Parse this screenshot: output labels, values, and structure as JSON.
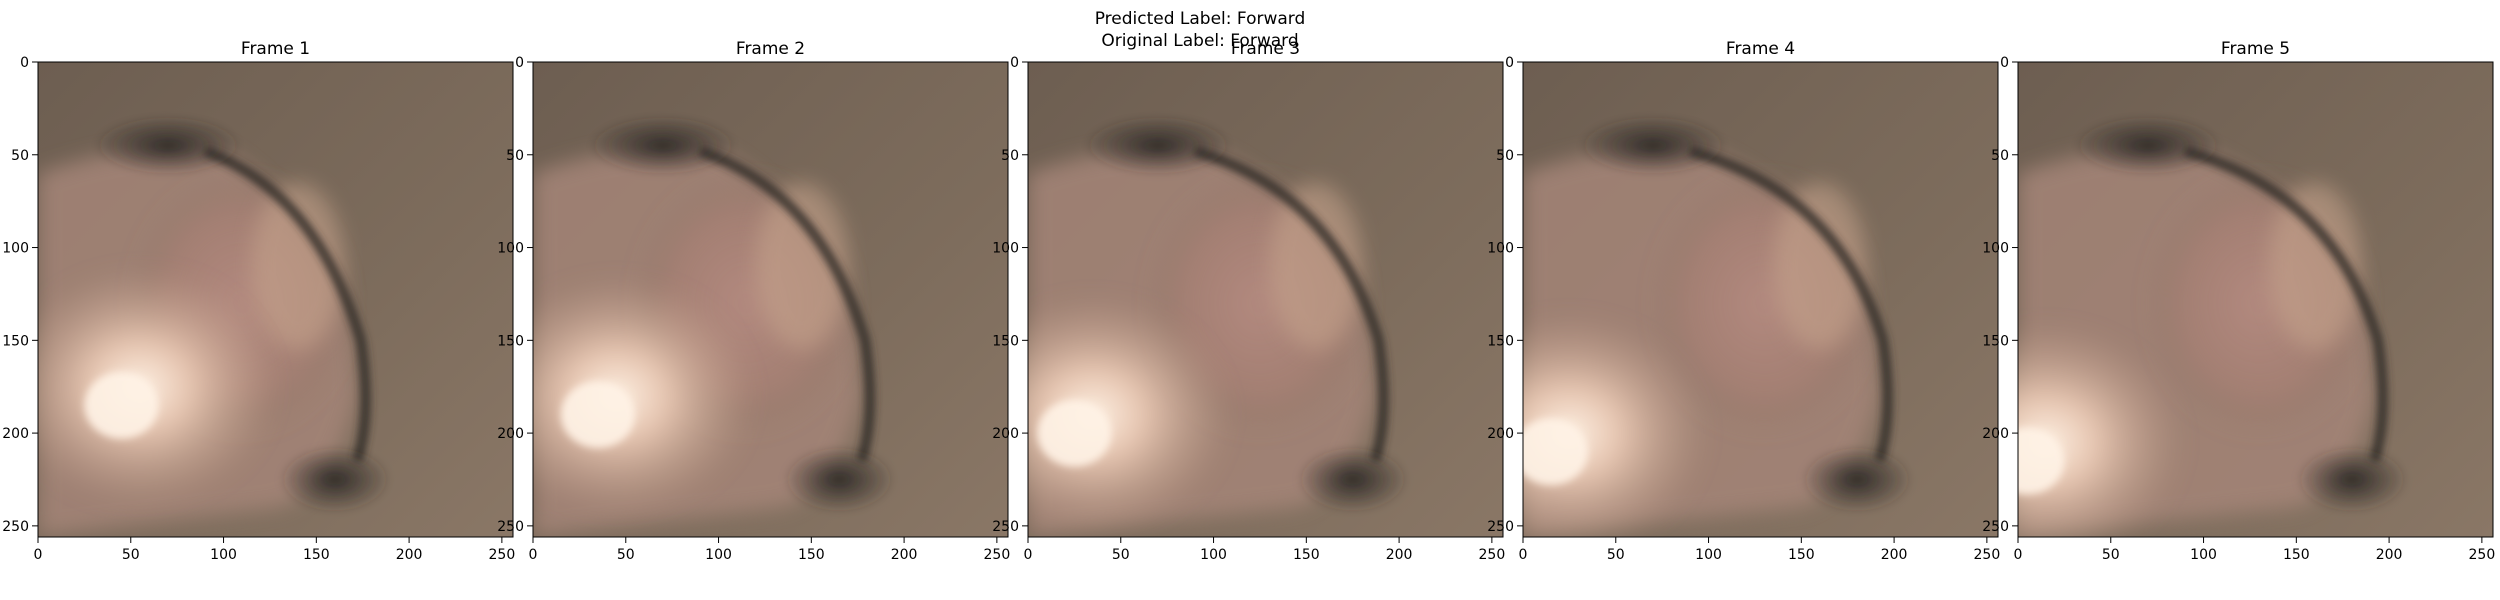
{
  "figure": {
    "predicted_label": "Predicted Label: Forward",
    "original_label": "Original Label: Forward"
  },
  "colors": {
    "background": "#ffffff",
    "axis": "#000000",
    "tissue_base": "#7b6a5b",
    "tissue_dark": "#2e2a27",
    "tissue_pink": "#b48a80",
    "tissue_highlight": "#fff3e6"
  },
  "frames": [
    {
      "title": "Frame 1",
      "light_x": 45,
      "light_y": 185,
      "wall_x": 170
    },
    {
      "title": "Frame 2",
      "light_x": 35,
      "light_y": 190,
      "wall_x": 175
    },
    {
      "title": "Frame 3",
      "light_x": 25,
      "light_y": 200,
      "wall_x": 185
    },
    {
      "title": "Frame 4",
      "light_x": 15,
      "light_y": 210,
      "wall_x": 190
    },
    {
      "title": "Frame 5",
      "light_x": 5,
      "light_y": 215,
      "wall_x": 190
    }
  ],
  "axes": {
    "x_ticks": [
      "0",
      "50",
      "100",
      "150",
      "200",
      "250"
    ],
    "y_ticks": [
      "0",
      "50",
      "100",
      "150",
      "200",
      "250"
    ],
    "x_tick_values": [
      0,
      50,
      100,
      150,
      200,
      250
    ],
    "y_tick_values": [
      0,
      50,
      100,
      150,
      200,
      250
    ],
    "extent": 256
  }
}
